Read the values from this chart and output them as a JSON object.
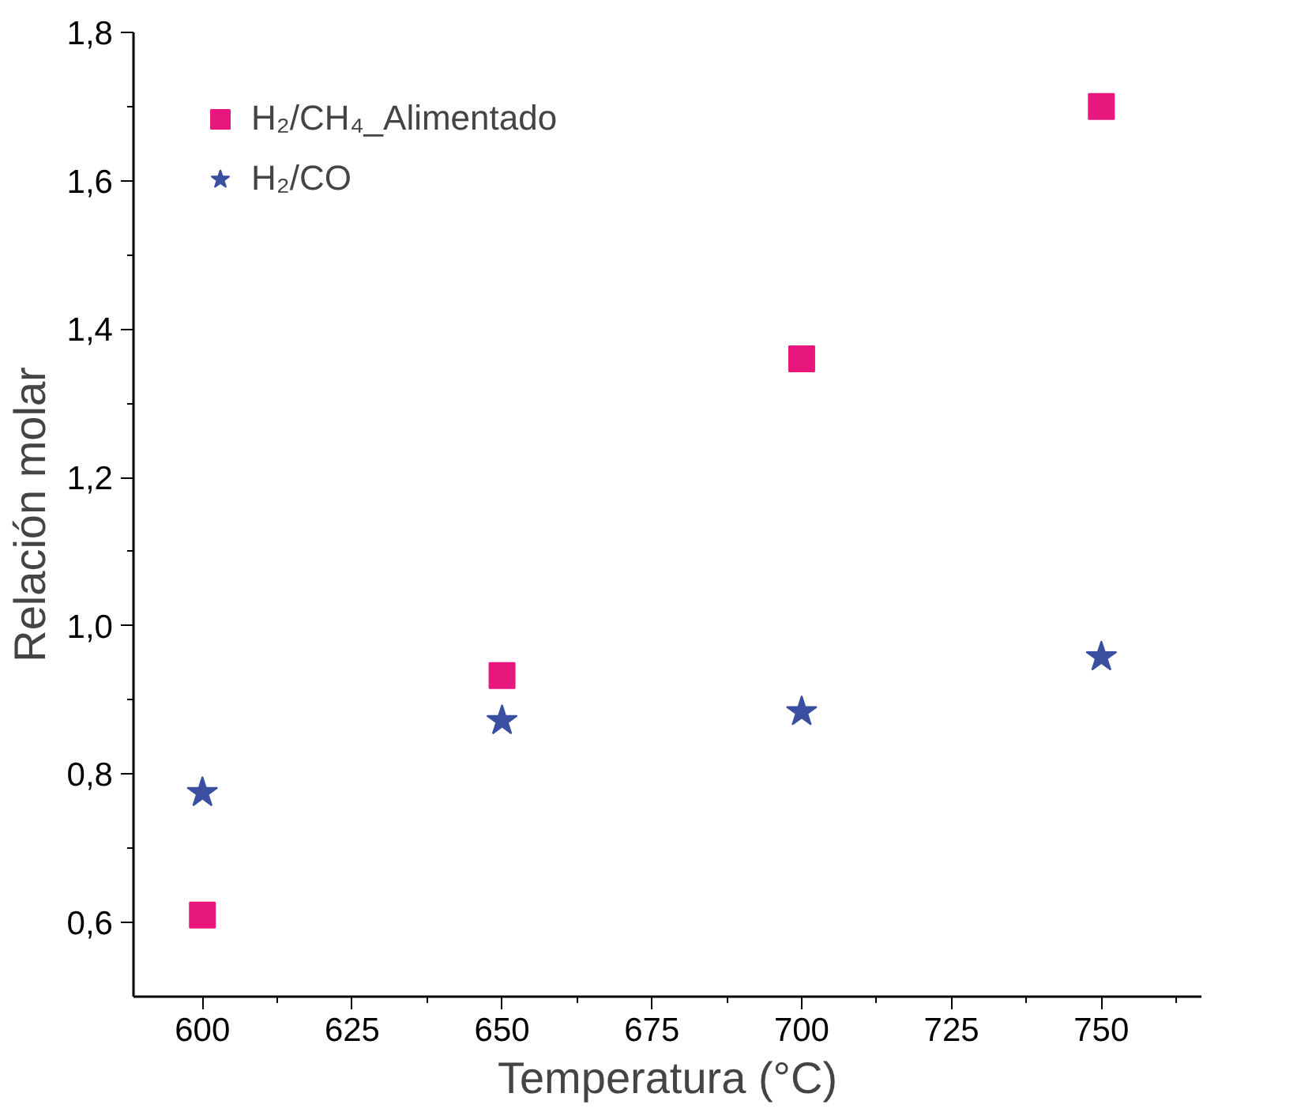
{
  "chart_data": {
    "type": "scatter",
    "xlabel": "Temperatura (°C)",
    "ylabel": "Relación molar",
    "x": [
      600,
      650,
      700,
      750
    ],
    "series": [
      {
        "name": "H₂/CH₄_Alimentado",
        "color": "#e8177e",
        "marker": "square",
        "values": [
          0.61,
          0.933,
          1.36,
          1.7
        ]
      },
      {
        "name": "H₂/CO",
        "color": "#3a4fa0",
        "marker": "star",
        "values": [
          0.775,
          0.872,
          0.884,
          0.958
        ]
      }
    ],
    "xlim": [
      588.5,
      766.7
    ],
    "ylim": [
      0.5,
      1.8
    ],
    "xticks": [
      600,
      625,
      650,
      675,
      700,
      725,
      750
    ],
    "yticks": [
      {
        "value": 0.6,
        "label": "0,6"
      },
      {
        "value": 0.8,
        "label": "0,8"
      },
      {
        "value": 1.0,
        "label": "1,0"
      },
      {
        "value": 1.2,
        "label": "1,2"
      },
      {
        "value": 1.4,
        "label": "1,4"
      },
      {
        "value": 1.6,
        "label": "1,6"
      },
      {
        "value": 1.8,
        "label": "1,8"
      }
    ],
    "grid": false,
    "legend": "top left"
  }
}
